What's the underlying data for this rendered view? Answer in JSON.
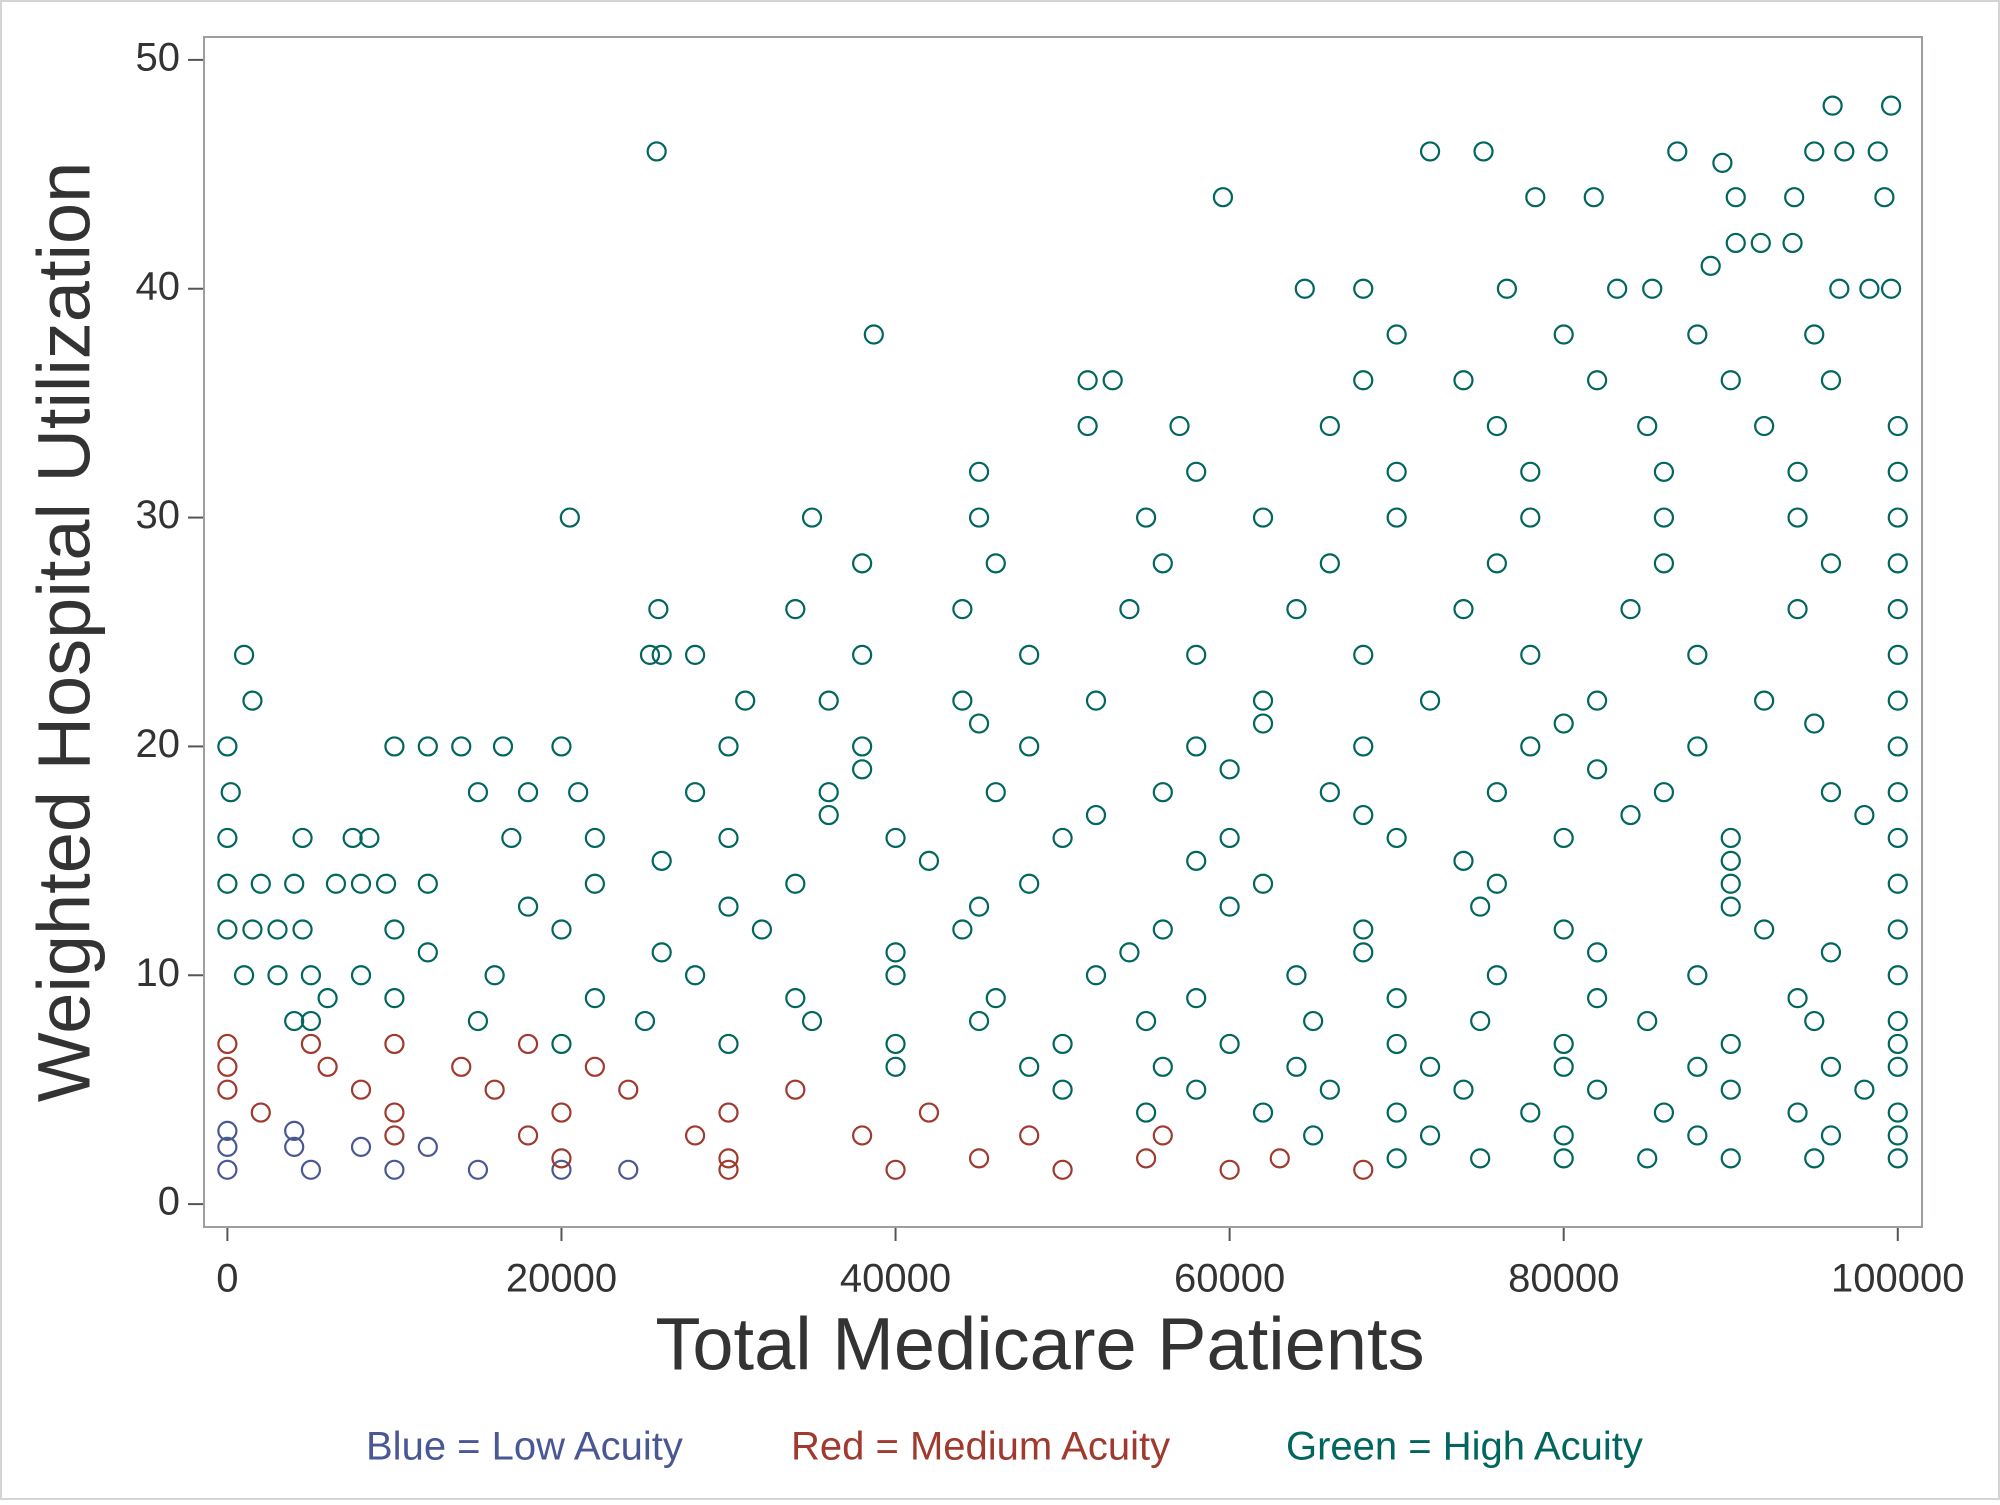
{
  "chart_data": {
    "type": "scatter",
    "x_label": "Total Medicare Patients",
    "y_label": "Weighted Hospital Utilization",
    "xlim": [
      -1400,
      101450
    ],
    "ylim": [
      -1,
      51
    ],
    "xticks": [
      0,
      20000,
      40000,
      60000,
      80000,
      100000
    ],
    "yticks": [
      0,
      10,
      20,
      30,
      40,
      50
    ],
    "grid": false,
    "series": [
      {
        "name": "Blue = Low Acuity",
        "color": "#4a5795",
        "x": [
          0,
          5000,
          10000,
          15000,
          20000,
          24000,
          0,
          4000,
          8000,
          12000,
          0,
          4000
        ],
        "values": [
          1.5,
          1.5,
          1.5,
          1.5,
          1.5,
          1.5,
          2.5,
          2.5,
          2.5,
          2.5,
          3.2,
          3.2
        ]
      },
      {
        "name": "Red = Medium Acuity",
        "color": "#a0392e",
        "x": [
          30000,
          40000,
          50000,
          60000,
          68000,
          20000,
          30000,
          45000,
          55000,
          63000,
          10000,
          18000,
          28000,
          38000,
          48000,
          56000,
          2000,
          10000,
          20000,
          30000,
          42000,
          0,
          8000,
          16000,
          24000,
          34000,
          0,
          6000,
          14000,
          22000,
          0,
          5000,
          10000,
          18000
        ],
        "values": [
          1.5,
          1.5,
          1.5,
          1.5,
          1.5,
          2,
          2,
          2,
          2,
          2,
          3,
          3,
          3,
          3,
          3,
          3,
          4,
          4,
          4,
          4,
          4,
          5,
          5,
          5,
          5,
          5,
          6,
          6,
          6,
          6,
          7,
          7,
          7,
          7
        ]
      },
      {
        "name": "Green = High Acuity",
        "color": "#00665e",
        "x": [
          25700,
          59600,
          72000,
          75200,
          78300,
          81800,
          86800,
          89500,
          90300,
          93800,
          95000,
          96100,
          96800,
          98800,
          99600,
          99200,
          38700,
          64500,
          68000,
          76600,
          83200,
          85300,
          88800,
          90300,
          91800,
          93700,
          96500,
          98300,
          99600,
          20500,
          1000,
          1500,
          0,
          200,
          0,
          25800,
          25300,
          28000,
          20000,
          10000,
          12000,
          14000,
          16500,
          18000,
          15000,
          4500,
          7500,
          8500,
          0,
          2000,
          4000,
          0,
          1500,
          3000,
          4500,
          6500,
          8000,
          9500,
          6000,
          3000,
          5000,
          4000,
          70000,
          75000,
          80000,
          85000,
          90000,
          95000,
          100000,
          65000,
          72000,
          80000,
          88000,
          96000,
          100000,
          55000,
          62000,
          70000,
          78000,
          86000,
          94000,
          100000,
          50000,
          58000,
          66000,
          74000,
          82000,
          90000,
          98000,
          40000,
          48000,
          56000,
          64000,
          72000,
          80000,
          88000,
          96000,
          100000,
          20000,
          30000,
          40000,
          50000,
          60000,
          70000,
          80000,
          90000,
          100000,
          5000,
          15000,
          25000,
          35000,
          45000,
          55000,
          65000,
          75000,
          85000,
          95000,
          100000,
          10000,
          22000,
          34000,
          46000,
          58000,
          70000,
          82000,
          94000,
          1000,
          8000,
          16000,
          28000,
          40000,
          52000,
          64000,
          76000,
          88000,
          100000,
          12000,
          26000,
          40000,
          54000,
          68000,
          82000,
          96000,
          10000,
          20000,
          32000,
          44000,
          56000,
          68000,
          80000,
          92000,
          100000,
          18000,
          30000,
          45000,
          60000,
          75000,
          90000,
          12000,
          22000,
          34000,
          48000,
          62000,
          76000,
          90000,
          100000,
          26000,
          42000,
          58000,
          74000,
          90000,
          17000,
          22000,
          30000,
          40000,
          50000,
          60000,
          70000,
          80000,
          90000,
          100000,
          36000,
          52000,
          68000,
          84000,
          98000,
          21000,
          28000,
          36000,
          46000,
          56000,
          66000,
          76000,
          86000,
          96000,
          100000,
          38000,
          60000,
          82000,
          30000,
          38000,
          48000,
          58000,
          68000,
          78000,
          88000,
          100000,
          45000,
          62000,
          80000,
          95000,
          31000,
          36000,
          44000,
          52000,
          62000,
          72000,
          82000,
          92000,
          100000,
          26000,
          38000,
          48000,
          58000,
          68000,
          78000,
          88000,
          100000,
          34000,
          44000,
          54000,
          64000,
          74000,
          84000,
          94000,
          100000,
          38000,
          46000,
          56000,
          66000,
          76000,
          86000,
          96000,
          100000,
          35000,
          45000,
          55000,
          62000,
          70000,
          78000,
          86000,
          94000,
          100000,
          45000,
          58000,
          70000,
          78000,
          86000,
          94000,
          100000,
          51500,
          57000,
          66000,
          76000,
          85000,
          92000,
          100000,
          51500,
          53000,
          68000,
          74000,
          82000,
          90000,
          96000,
          70000,
          80000,
          88000,
          95000
        ],
        "values": [
          46,
          44,
          46,
          46,
          44,
          44,
          46,
          45.5,
          44,
          44,
          46,
          48,
          46,
          46,
          48,
          44,
          38,
          40,
          40,
          40,
          40,
          40,
          41,
          42,
          42,
          42,
          40,
          40,
          40,
          30,
          24,
          22,
          20,
          18,
          16,
          26,
          24,
          24,
          20,
          20,
          20,
          20,
          20,
          18,
          18,
          16,
          16,
          16,
          14,
          14,
          14,
          12,
          12,
          12,
          12,
          14,
          14,
          14,
          9,
          10,
          10,
          8,
          2,
          2,
          2,
          2,
          2,
          2,
          2,
          3,
          3,
          3,
          3,
          3,
          3,
          4,
          4,
          4,
          4,
          4,
          4,
          4,
          5,
          5,
          5,
          5,
          5,
          5,
          5,
          6,
          6,
          6,
          6,
          6,
          6,
          6,
          6,
          6,
          7,
          7,
          7,
          7,
          7,
          7,
          7,
          7,
          7,
          8,
          8,
          8,
          8,
          8,
          8,
          8,
          8,
          8,
          8,
          8,
          9,
          9,
          9,
          9,
          9,
          9,
          9,
          9,
          10,
          10,
          10,
          10,
          10,
          10,
          10,
          10,
          10,
          10,
          11,
          11,
          11,
          11,
          11,
          11,
          11,
          12,
          12,
          12,
          12,
          12,
          12,
          12,
          12,
          12,
          13,
          13,
          13,
          13,
          13,
          13,
          14,
          14,
          14,
          14,
          14,
          14,
          14,
          14,
          15,
          15,
          15,
          15,
          15,
          16,
          16,
          16,
          16,
          16,
          16,
          16,
          16,
          16,
          16,
          17,
          17,
          17,
          17,
          17,
          18,
          18,
          18,
          18,
          18,
          18,
          18,
          18,
          18,
          18,
          19,
          19,
          19,
          20,
          20,
          20,
          20,
          20,
          20,
          20,
          20,
          21,
          21,
          21,
          21,
          22,
          22,
          22,
          22,
          22,
          22,
          22,
          22,
          22,
          24,
          24,
          24,
          24,
          24,
          24,
          24,
          24,
          26,
          26,
          26,
          26,
          26,
          26,
          26,
          26,
          28,
          28,
          28,
          28,
          28,
          28,
          28,
          28,
          30,
          30,
          30,
          30,
          30,
          30,
          30,
          30,
          30,
          32,
          32,
          32,
          32,
          32,
          32,
          32,
          34,
          34,
          34,
          34,
          34,
          34,
          34,
          36,
          36,
          36,
          36,
          36,
          36,
          36,
          38,
          38,
          38,
          38
        ]
      }
    ]
  }
}
